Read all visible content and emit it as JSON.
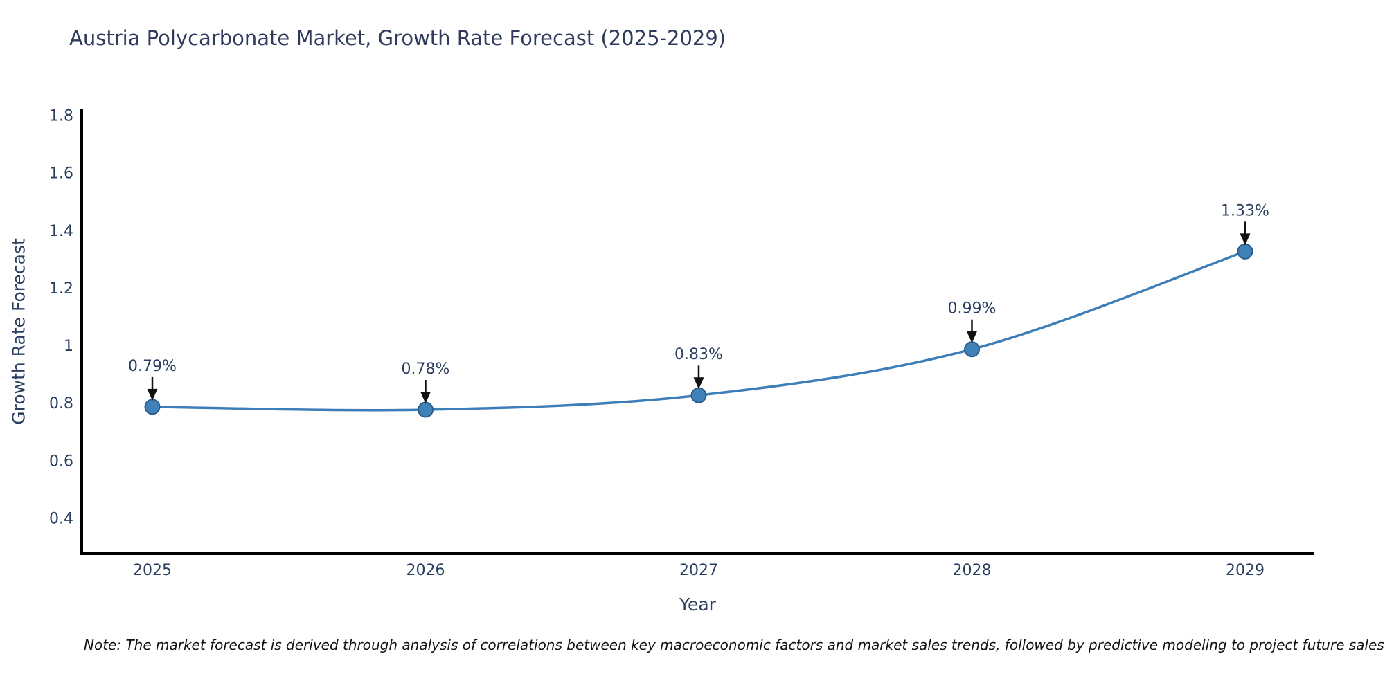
{
  "header": {
    "title": "Austria Polycarbonate Market, Growth Rate Forecast (2025-2029)"
  },
  "chart_data": {
    "type": "line",
    "title": "Austria Polycarbonate Market, Growth Rate Forecast (2025-2029)",
    "xlabel": "Year",
    "ylabel": "Growth Rate Forecast",
    "categories": [
      "2025",
      "2026",
      "2027",
      "2028",
      "2029"
    ],
    "series": [
      {
        "name": "Growth Rate Forecast",
        "values": [
          0.79,
          0.78,
          0.83,
          0.99,
          1.33
        ]
      }
    ],
    "point_labels": [
      "0.79%",
      "0.78%",
      "0.83%",
      "0.99%",
      "1.33%"
    ],
    "ylim": [
      0.28,
      1.82
    ],
    "yticks": [
      0.4,
      0.6,
      0.8,
      1,
      1.2,
      1.4,
      1.6,
      1.8
    ],
    "ytick_labels": [
      "0.4",
      "0.6",
      "0.8",
      "1",
      "1.2",
      "1.4",
      "1.6",
      "1.8"
    ],
    "grid": false,
    "legend_position": "none",
    "line_smooth": true,
    "colors": {
      "line": "#3d7eb8",
      "marker_fill": "#4081b8",
      "marker_edge": "#2a5d8c",
      "axis": "#000000",
      "tick_text": "#2a3f5f",
      "axis_title_text": "#2a3f5f",
      "annotation_text": "#2a3f5f",
      "annotation_arrow": "#111111",
      "background": "#ffffff"
    }
  },
  "footer": {
    "note": "Note: The market forecast is derived through analysis of correlations between key macroeconomic factors and market sales trends, followed by predictive modeling to project future sales"
  }
}
